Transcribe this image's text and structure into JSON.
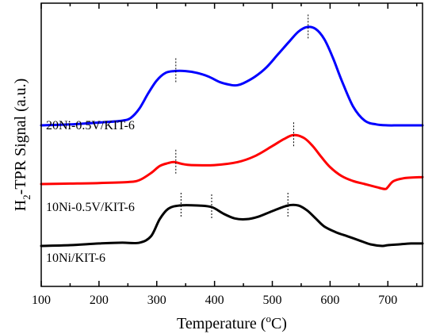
{
  "chart_data": {
    "type": "line",
    "xlabel": "Temperature (°C)",
    "ylabel": "H2-TPR Signal (a.u.)",
    "xlim": [
      100,
      760
    ],
    "y_ticks_shown": false,
    "xticks": [
      100,
      200,
      300,
      400,
      500,
      600,
      700
    ],
    "grid": false,
    "series": [
      {
        "name": "20Ni-0.5V/KIT-6",
        "color": "#0000ff",
        "x": [
          100,
          150,
          200,
          240,
          255,
          270,
          285,
          300,
          315,
          330,
          350,
          370,
          390,
          410,
          430,
          440,
          450,
          470,
          490,
          510,
          530,
          545,
          560,
          575,
          590,
          605,
          620,
          640,
          660,
          680,
          700,
          720,
          760
        ],
        "y": [
          0.0,
          0.01,
          0.03,
          0.05,
          0.08,
          0.18,
          0.34,
          0.48,
          0.56,
          0.58,
          0.58,
          0.56,
          0.52,
          0.46,
          0.43,
          0.43,
          0.45,
          0.52,
          0.62,
          0.76,
          0.9,
          1.0,
          1.05,
          1.03,
          0.92,
          0.72,
          0.48,
          0.2,
          0.05,
          0.01,
          0.0,
          0.0,
          0.0
        ]
      },
      {
        "name": "10Ni-0.5V/KIT-6",
        "color": "#ff0000",
        "x": [
          100,
          150,
          200,
          250,
          270,
          290,
          305,
          320,
          330,
          345,
          360,
          400,
          440,
          470,
          500,
          520,
          537,
          555,
          570,
          585,
          600,
          620,
          640,
          660,
          680,
          695,
          700,
          710,
          730,
          760
        ],
        "y": [
          0.0,
          0.005,
          0.01,
          0.02,
          0.04,
          0.11,
          0.18,
          0.21,
          0.22,
          0.2,
          0.19,
          0.19,
          0.22,
          0.28,
          0.38,
          0.45,
          0.49,
          0.46,
          0.38,
          0.27,
          0.17,
          0.08,
          0.03,
          0.0,
          -0.03,
          -0.05,
          -0.03,
          0.03,
          0.06,
          0.07
        ]
      },
      {
        "name": "10Ni/KIT-6",
        "color": "#000000",
        "x": [
          100,
          150,
          200,
          240,
          270,
          290,
          305,
          320,
          340,
          370,
          395,
          415,
          435,
          455,
          475,
          500,
          527,
          545,
          560,
          575,
          590,
          610,
          630,
          650,
          670,
          690,
          700,
          720,
          740,
          760
        ],
        "y": [
          0.0,
          0.01,
          0.03,
          0.04,
          0.04,
          0.12,
          0.33,
          0.46,
          0.5,
          0.5,
          0.48,
          0.4,
          0.34,
          0.33,
          0.36,
          0.43,
          0.5,
          0.5,
          0.44,
          0.34,
          0.24,
          0.17,
          0.12,
          0.07,
          0.02,
          0.0,
          0.01,
          0.02,
          0.03,
          0.03
        ]
      }
    ],
    "peak_markers": {
      "20Ni-0.5V/KIT-6": [
        333,
        562
      ],
      "10Ni-0.5V/KIT-6": [
        333,
        537
      ],
      "10Ni/KIT-6": [
        342,
        395,
        527
      ]
    }
  }
}
